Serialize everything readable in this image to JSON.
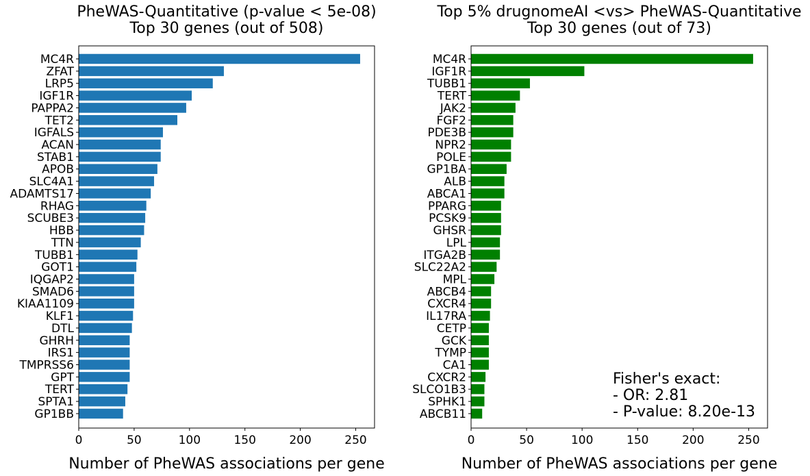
{
  "chart_data": [
    {
      "type": "bar",
      "orientation": "horizontal",
      "title": "PheWAS-Quantitative (p-value < 5e-08)",
      "subtitle": "Top 30 genes (out of 508)",
      "xlabel": "Number of PheWAS associations per gene",
      "ylabel": "",
      "xlim": [
        0,
        267
      ],
      "xticks": [
        0,
        50,
        100,
        150,
        200,
        250
      ],
      "grid": false,
      "color": "#1f77b4",
      "categories": [
        "MC4R",
        "ZFAT",
        "LRP5",
        "IGF1R",
        "PAPPA2",
        "TET2",
        "IGFALS",
        "ACAN",
        "STAB1",
        "APOB",
        "SLC4A1",
        "ADAMTS17",
        "RHAG",
        "SCUBE3",
        "HBB",
        "TTN",
        "TUBB1",
        "GOT1",
        "IQGAP2",
        "SMAD6",
        "KIAA1109",
        "KLF1",
        "DTL",
        "GHRH",
        "IRS1",
        "TMPRSS6",
        "GPT",
        "TERT",
        "SPTA1",
        "GP1BB"
      ],
      "values": [
        254,
        131,
        121,
        102,
        97,
        89,
        76,
        74,
        74,
        71,
        68,
        65,
        61,
        60,
        59,
        56,
        53,
        52,
        50,
        50,
        50,
        49,
        48,
        46,
        46,
        46,
        46,
        44,
        42,
        40
      ]
    },
    {
      "type": "bar",
      "orientation": "horizontal",
      "title": "Top 5% drugnomeAI  <vs>  PheWAS-Quantitative",
      "subtitle": "Top 30 genes (out of 73)",
      "xlabel": "Number of PheWAS associations per gene",
      "ylabel": "",
      "xlim": [
        0,
        267
      ],
      "xticks": [
        0,
        50,
        100,
        150,
        200,
        250
      ],
      "grid": false,
      "color": "#008000",
      "categories": [
        "MC4R",
        "IGF1R",
        "TUBB1",
        "TERT",
        "JAK2",
        "FGF2",
        "PDE3B",
        "NPR2",
        "POLE",
        "GP1BA",
        "ALB",
        "ABCA1",
        "PPARG",
        "PCSK9",
        "GHSR",
        "LPL",
        "ITGA2B",
        "SLC22A2",
        "MPL",
        "ABCB4",
        "CXCR4",
        "IL17RA",
        "CETP",
        "GCK",
        "TYMP",
        "CA1",
        "CXCR2",
        "SLCO1B3",
        "SPHK1",
        "ABCB11"
      ],
      "values": [
        254,
        102,
        53,
        44,
        40,
        38,
        38,
        36,
        36,
        32,
        30,
        30,
        27,
        27,
        27,
        26,
        26,
        23,
        21,
        18,
        18,
        17,
        16,
        16,
        16,
        16,
        13,
        12,
        12,
        10
      ],
      "annotation": [
        "Fisher's exact:",
        "- OR: 2.81",
        "- P-value: 8.20e-13"
      ]
    }
  ]
}
